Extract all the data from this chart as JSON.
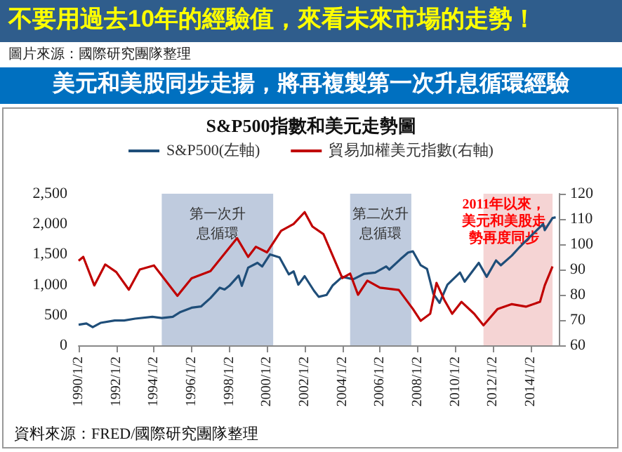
{
  "chart_data": {
    "type": "line",
    "title": "不要用過去10年的經驗值，來看未來市場的走勢！",
    "subtitle": "美元和美股同步走揚，將再複製第一次升息循環經驗",
    "annotations": [
      "圖片來源：國際研究團隊整理",
      "S&P500指數和美元走勢圖",
      "資料來源：FRED/國際研究團隊整理"
    ],
    "legend": "top",
    "grid": false,
    "xlim": [
      "1990-01-01",
      "2015-07-01"
    ],
    "xticks": [
      {
        "value": "1990-01-02",
        "label": "1990/1/2"
      },
      {
        "value": "1992-01-02",
        "label": "1992/1/2"
      },
      {
        "value": "1994-01-02",
        "label": "1994/1/2"
      },
      {
        "value": "1996-01-02",
        "label": "1996/1/2"
      },
      {
        "value": "1998-01-02",
        "label": "1998/1/2"
      },
      {
        "value": "2000-01-02",
        "label": "2000/1/2"
      },
      {
        "value": "2002-01-02",
        "label": "2002/1/2"
      },
      {
        "value": "2004-01-02",
        "label": "2004/1/2"
      },
      {
        "value": "2006-01-02",
        "label": "2006/1/2"
      },
      {
        "value": "2008-01-02",
        "label": "2008/1/2"
      },
      {
        "value": "2010-01-02",
        "label": "2010/1/2"
      },
      {
        "value": "2012-01-02",
        "label": "2012/1/2"
      },
      {
        "value": "2014-01-02",
        "label": "2014/1/2"
      }
    ],
    "ylim": [
      0,
      2500
    ],
    "yticks": [
      0,
      {
        "value": 500,
        "label": "500"
      },
      {
        "value": 1000,
        "label": "1,000"
      },
      {
        "value": 1500,
        "label": "1,500"
      },
      {
        "value": 2000,
        "label": "2,000"
      },
      {
        "value": 2500,
        "label": "2,500"
      }
    ],
    "y2lim": [
      60,
      120
    ],
    "y2ticks": [
      60,
      70,
      80,
      90,
      100,
      110,
      120
    ],
    "bands": [
      {
        "axis": "x",
        "from": "1994-06-01",
        "to": "2000-05-01",
        "label": "第一次升息循環",
        "color": "#a9b9d3"
      },
      {
        "axis": "x",
        "from": "2004-06-01",
        "to": "2007-09-01",
        "label": "第二次升息循環",
        "color": "#a9b9d3"
      },
      {
        "axis": "x",
        "from": "2011-07-01",
        "to": "2015-03-01",
        "label": "2011年以來，美元和美股走勢再度同步",
        "color": "#f2c6c6"
      }
    ],
    "series": [
      {
        "name": "S&P500(左軸)",
        "color": "#1f4e79",
        "x": [
          "1990-01",
          "1990-06",
          "1990-10",
          "1991-03",
          "1991-12",
          "1992-06",
          "1993-01",
          "1993-12",
          "1994-06",
          "1995-01",
          "1995-06",
          "1996-01",
          "1996-07",
          "1997-01",
          "1997-07",
          "1997-10",
          "1998-01",
          "1998-07",
          "1998-09",
          "1999-01",
          "1999-07",
          "1999-10",
          "2000-03",
          "2000-09",
          "2001-03",
          "2001-06",
          "2001-09",
          "2002-01",
          "2002-07",
          "2002-10",
          "2003-03",
          "2003-07",
          "2004-01",
          "2004-08",
          "2005-03",
          "2005-10",
          "2006-05",
          "2006-07",
          "2007-02",
          "2007-07",
          "2007-10",
          "2008-03",
          "2008-07",
          "2008-11",
          "2009-03",
          "2009-08",
          "2010-04",
          "2010-07",
          "2011-04",
          "2011-09",
          "2012-03",
          "2012-06",
          "2013-01",
          "2013-06",
          "2014-01",
          "2014-09",
          "2014-10",
          "2015-03",
          "2015-05"
        ],
        "values": [
          340,
          360,
          300,
          370,
          410,
          410,
          440,
          470,
          450,
          470,
          550,
          620,
          640,
          780,
          950,
          920,
          980,
          1150,
          980,
          1280,
          1360,
          1300,
          1500,
          1450,
          1170,
          1220,
          1000,
          1140,
          900,
          800,
          830,
          990,
          1130,
          1090,
          1180,
          1200,
          1300,
          1250,
          1420,
          1530,
          1550,
          1320,
          1260,
          850,
          700,
          1000,
          1200,
          1050,
          1360,
          1130,
          1400,
          1320,
          1480,
          1620,
          1800,
          2000,
          1900,
          2100,
          2110
        ]
      },
      {
        "name": "貿易加權美元指數(右軸)",
        "color": "#c00000",
        "axis": "y2",
        "x": [
          "1990-01",
          "1990-04",
          "1990-11",
          "1991-06",
          "1992-01",
          "1992-09",
          "1993-04",
          "1994-01",
          "1995-04",
          "1996-01",
          "1997-01",
          "1998-06",
          "1999-01",
          "1999-06",
          "2000-01",
          "2000-10",
          "2001-06",
          "2002-01",
          "2002-06",
          "2003-01",
          "2003-10",
          "2004-01",
          "2004-06",
          "2004-11",
          "2005-05",
          "2006-01",
          "2007-01",
          "2007-10",
          "2008-03",
          "2008-09",
          "2009-01",
          "2009-06",
          "2009-11",
          "2010-05",
          "2011-01",
          "2011-07",
          "2012-04",
          "2013-01",
          "2013-10",
          "2014-07",
          "2014-10",
          "2015-03"
        ],
        "values": [
          93.5,
          95,
          83.7,
          92,
          89,
          82,
          90,
          91.6,
          79.6,
          86.5,
          89.4,
          102.4,
          95,
          99,
          96.8,
          105.3,
          108,
          112.7,
          107,
          104,
          91,
          86.6,
          88.4,
          80,
          85.6,
          82.8,
          81.9,
          74.4,
          69.7,
          72.5,
          84.7,
          78,
          72.5,
          77.2,
          72.5,
          67.9,
          74.4,
          76.3,
          75.3,
          77.2,
          83.7,
          91.2
        ]
      }
    ]
  }
}
